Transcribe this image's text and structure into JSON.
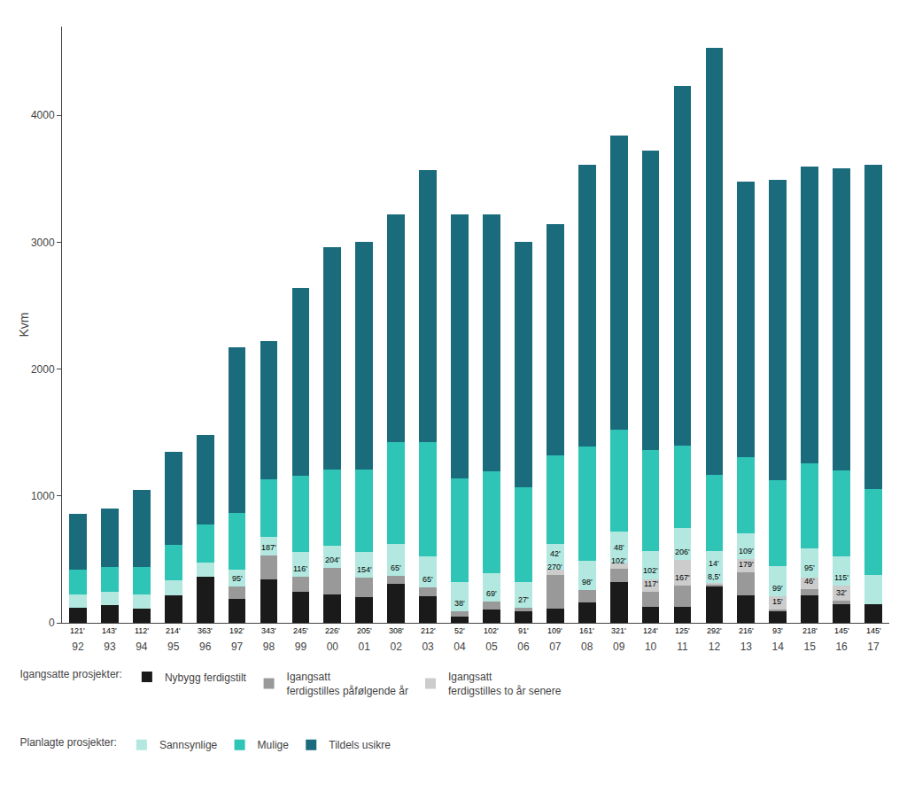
{
  "chart_data": {
    "type": "bar",
    "stacked": true,
    "categories": [
      "92",
      "93",
      "94",
      "95",
      "96",
      "97",
      "98",
      "99",
      "00",
      "01",
      "02",
      "03",
      "04",
      "05",
      "06",
      "07",
      "08",
      "09",
      "10",
      "11",
      "12",
      "13",
      "14",
      "15",
      "16",
      "17"
    ],
    "series": [
      {
        "name": "Nybygg ferdigstilt",
        "color": "#1a1a1a",
        "values": [
          121,
          143,
          112,
          214,
          363,
          192,
          343,
          245,
          226,
          205,
          308,
          212,
          52,
          102,
          91,
          109,
          161,
          321,
          124,
          125,
          292,
          216,
          93,
          218,
          145,
          145
        ],
        "value_labels": [
          "121'",
          "143'",
          "112'",
          "214'",
          "363'",
          "192'",
          "343'",
          "245'",
          "226'",
          "205'",
          "308'",
          "212'",
          "52'",
          "102'",
          "91'",
          "109'",
          "161'",
          "321'",
          "124'",
          "125'",
          "292'",
          "216'",
          "93'",
          "218'",
          "145'",
          "145'"
        ]
      },
      {
        "name": "Igangsatt\nferdigstilles påfølgende år",
        "color": "#999999",
        "values": [
          0,
          0,
          0,
          0,
          0,
          95,
          187,
          116,
          204,
          154,
          65,
          65,
          38,
          69,
          27,
          270,
          98,
          102,
          117,
          167,
          8.5,
          179,
          15,
          46,
          32,
          0
        ],
        "value_labels": [
          null,
          null,
          null,
          null,
          null,
          "95'",
          "187'",
          "116'",
          "204'",
          "154'",
          "65'",
          "65'",
          "38'",
          "69'",
          "27'",
          "270'",
          "98'",
          "102'",
          "117'",
          "167'",
          "8,5'",
          "179'",
          "15'",
          "46'",
          "32'",
          null
        ]
      },
      {
        "name": "Igangsatt\nferdigstilles to år senere",
        "color": "#cccccc",
        "values": [
          0,
          0,
          0,
          0,
          0,
          0,
          0,
          0,
          0,
          0,
          0,
          0,
          0,
          0,
          0,
          42,
          0,
          48,
          102,
          206,
          14,
          109,
          99,
          95,
          115,
          0
        ],
        "value_labels": [
          null,
          null,
          null,
          null,
          null,
          null,
          null,
          null,
          null,
          null,
          null,
          null,
          null,
          null,
          null,
          "42'",
          null,
          "48'",
          "102'",
          "206'",
          "14'",
          "109'",
          "99'",
          "95'",
          "115'",
          null
        ]
      },
      {
        "name": "Sannsynlige",
        "color": "#b2e8e0",
        "values": [
          100,
          100,
          110,
          120,
          110,
          130,
          150,
          200,
          180,
          200,
          250,
          250,
          230,
          220,
          200,
          200,
          230,
          250,
          220,
          250,
          250,
          200,
          240,
          230,
          230,
          230
        ]
      },
      {
        "name": "Mulige",
        "color": "#2ec4b6",
        "values": [
          200,
          200,
          220,
          280,
          300,
          450,
          450,
          600,
          600,
          650,
          800,
          900,
          820,
          800,
          750,
          700,
          900,
          800,
          800,
          650,
          600,
          600,
          680,
          670,
          680,
          680
        ]
      },
      {
        "name": "Tildels usikre",
        "color": "#1a6b7c",
        "values": [
          439,
          457,
          608,
          736,
          707,
          1303,
          1090,
          1479,
          1750,
          1791,
          1797,
          2143,
          2080,
          2029,
          1932,
          1819,
          2221,
          2319,
          2357,
          2832,
          3365.5,
          2176,
          2363,
          2341,
          2378,
          2555
        ]
      }
    ],
    "ylabel": "Kvm",
    "ylim": [
      0,
      4700
    ],
    "yticks": [
      0,
      1000,
      2000,
      3000,
      4000
    ],
    "grid": false,
    "legend": "bottom",
    "legend_groups": [
      "Igangsatte prosjekter:",
      "Planlagte prosjekter:"
    ]
  }
}
